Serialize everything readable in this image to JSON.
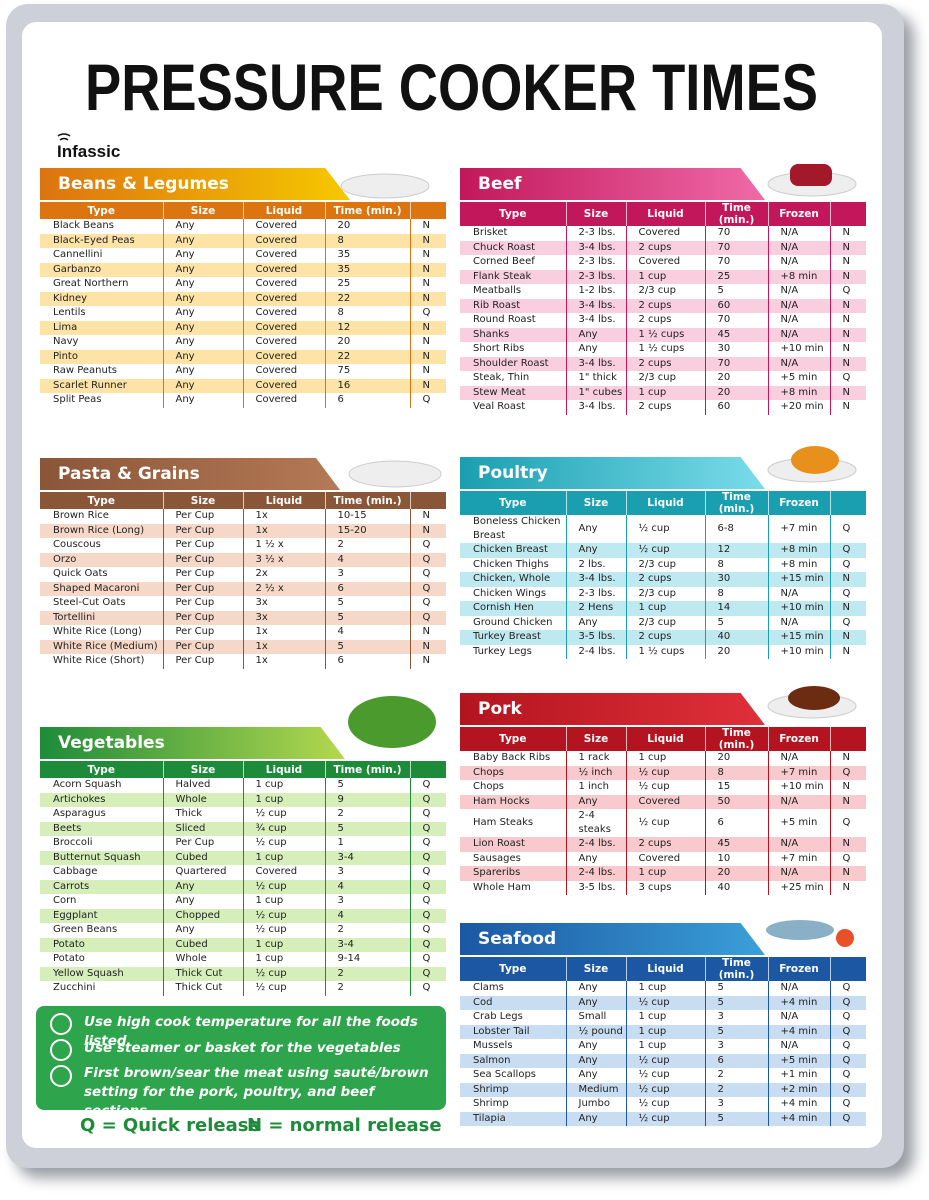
{
  "header": {
    "title": "PRESSURE COOKER TIMES",
    "brand": "Infassic"
  },
  "sections": [
    {
      "title": "Beans & Legumes",
      "columns": [
        "Type",
        "Size",
        "Liquid",
        "Time (min.)"
      ],
      "rows": [
        [
          "Black Beans",
          "Any",
          "Covered",
          "20",
          "N"
        ],
        [
          "Black-Eyed Peas",
          "Any",
          "Covered",
          "8",
          "N"
        ],
        [
          "Cannellini",
          "Any",
          "Covered",
          "35",
          "N"
        ],
        [
          "Garbanzo",
          "Any",
          "Covered",
          "35",
          "N"
        ],
        [
          "Great Northern",
          "Any",
          "Covered",
          "25",
          "N"
        ],
        [
          "Kidney",
          "Any",
          "Covered",
          "22",
          "N"
        ],
        [
          "Lentils",
          "Any",
          "Covered",
          "8",
          "Q"
        ],
        [
          "Lima",
          "Any",
          "Covered",
          "12",
          "N"
        ],
        [
          "Navy",
          "Any",
          "Covered",
          "20",
          "N"
        ],
        [
          "Pinto",
          "Any",
          "Covered",
          "22",
          "N"
        ],
        [
          "Raw Peanuts",
          "Any",
          "Covered",
          "75",
          "N"
        ],
        [
          "Scarlet Runner",
          "Any",
          "Covered",
          "16",
          "N"
        ],
        [
          "Split Peas",
          "Any",
          "Covered",
          "6",
          "Q"
        ]
      ]
    },
    {
      "title": "Beef",
      "columns": [
        "Type",
        "Size",
        "Liquid",
        "Time (min.)",
        "Frozen"
      ],
      "rows": [
        [
          "Brisket",
          "2-3 lbs.",
          "Covered",
          "70",
          "N/A",
          "N"
        ],
        [
          "Chuck Roast",
          "3-4 lbs.",
          "2 cups",
          "70",
          "N/A",
          "N"
        ],
        [
          "Corned Beef",
          "2-3 lbs.",
          "Covered",
          "70",
          "N/A",
          "N"
        ],
        [
          "Flank Steak",
          "2-3 lbs.",
          "1 cup",
          "25",
          "+8 min",
          "N"
        ],
        [
          "Meatballs",
          "1-2 lbs.",
          "2/3 cup",
          "5",
          "N/A",
          "Q"
        ],
        [
          "Rib Roast",
          "3-4 lbs.",
          "2 cups",
          "60",
          "N/A",
          "N"
        ],
        [
          "Round Roast",
          "3-4 lbs.",
          "2 cups",
          "70",
          "N/A",
          "N"
        ],
        [
          "Shanks",
          "Any",
          "1 ½ cups",
          "45",
          "N/A",
          "N"
        ],
        [
          "Short Ribs",
          "Any",
          "1 ½ cups",
          "30",
          "+10 min",
          "N"
        ],
        [
          "Shoulder Roast",
          "3-4 lbs.",
          "2 cups",
          "70",
          "N/A",
          "N"
        ],
        [
          "Steak, Thin",
          "1\" thick",
          "2/3 cup",
          "20",
          "+5 min",
          "Q"
        ],
        [
          "Stew Meat",
          "1\" cubes",
          "1 cup",
          "20",
          "+8 min",
          "N"
        ],
        [
          "Veal Roast",
          "3-4 lbs.",
          "2 cups",
          "60",
          "+20 min",
          "N"
        ]
      ]
    },
    {
      "title": "Pasta & Grains",
      "columns": [
        "Type",
        "Size",
        "Liquid",
        "Time (min.)"
      ],
      "rows": [
        [
          "Brown Rice",
          "Per Cup",
          "1x",
          "10-15",
          "N"
        ],
        [
          "Brown Rice (Long)",
          "Per Cup",
          "1x",
          "15-20",
          "N"
        ],
        [
          "Couscous",
          "Per Cup",
          "1 ½ x",
          "2",
          "Q"
        ],
        [
          "Orzo",
          "Per Cup",
          "3 ½ x",
          "4",
          "Q"
        ],
        [
          "Quick Oats",
          "Per Cup",
          "2x",
          "3",
          "Q"
        ],
        [
          "Shaped Macaroni",
          "Per Cup",
          "2 ½ x",
          "6",
          "Q"
        ],
        [
          "Steel-Cut Oats",
          "Per Cup",
          "3x",
          "5",
          "Q"
        ],
        [
          "Tortellini",
          "Per Cup",
          "3x",
          "5",
          "Q"
        ],
        [
          "White Rice (Long)",
          "Per Cup",
          "1x",
          "4",
          "N"
        ],
        [
          "White Rice (Medium)",
          "Per Cup",
          "1x",
          "5",
          "N"
        ],
        [
          "White Rice (Short)",
          "Per Cup",
          "1x",
          "6",
          "N"
        ]
      ]
    },
    {
      "title": "Poultry",
      "columns": [
        "Type",
        "Size",
        "Liquid",
        "Time (min.)",
        "Frozen"
      ],
      "rows": [
        [
          "Boneless Chicken Breast",
          "Any",
          "½ cup",
          "6-8",
          "+7 min",
          "Q"
        ],
        [
          "Chicken Breast",
          "Any",
          "½ cup",
          "12",
          "+8 min",
          "Q"
        ],
        [
          "Chicken Thighs",
          "2 lbs.",
          "2/3 cup",
          "8",
          "+8 min",
          "Q"
        ],
        [
          "Chicken, Whole",
          "3-4 lbs.",
          "2 cups",
          "30",
          "+15 min",
          "N"
        ],
        [
          "Chicken Wings",
          "2-3 lbs.",
          "2/3 cup",
          "8",
          "N/A",
          "Q"
        ],
        [
          "Cornish Hen",
          "2 Hens",
          "1 cup",
          "14",
          "+10 min",
          "N"
        ],
        [
          "Ground Chicken",
          "Any",
          "2/3 cup",
          "5",
          "N/A",
          "Q"
        ],
        [
          "Turkey Breast",
          "3-5 lbs.",
          "2 cups",
          "40",
          "+15 min",
          "N"
        ],
        [
          "Turkey Legs",
          "2-4 lbs.",
          "1 ½ cups",
          "20",
          "+10 min",
          "N"
        ]
      ]
    },
    {
      "title": "Vegetables",
      "columns": [
        "Type",
        "Size",
        "Liquid",
        "Time (min.)"
      ],
      "rows": [
        [
          "Acorn Squash",
          "Halved",
          "1 cup",
          "5",
          "Q"
        ],
        [
          "Artichokes",
          "Whole",
          "1 cup",
          "9",
          "Q"
        ],
        [
          "Asparagus",
          "Thick",
          "½ cup",
          "2",
          "Q"
        ],
        [
          "Beets",
          "Sliced",
          "¾ cup",
          "5",
          "Q"
        ],
        [
          "Broccoli",
          "Per Cup",
          "½ cup",
          "1",
          "Q"
        ],
        [
          "Butternut Squash",
          "Cubed",
          "1 cup",
          "3-4",
          "Q"
        ],
        [
          "Cabbage",
          "Quartered",
          "Covered",
          "3",
          "Q"
        ],
        [
          "Carrots",
          "Any",
          "½ cup",
          "4",
          "Q"
        ],
        [
          "Corn",
          "Any",
          "1 cup",
          "3",
          "Q"
        ],
        [
          "Eggplant",
          "Chopped",
          "½ cup",
          "4",
          "Q"
        ],
        [
          "Green Beans",
          "Any",
          "½ cup",
          "2",
          "Q"
        ],
        [
          "Potato",
          "Cubed",
          "1 cup",
          "3-4",
          "Q"
        ],
        [
          "Potato",
          "Whole",
          "1 cup",
          "9-14",
          "Q"
        ],
        [
          "Yellow Squash",
          "Thick Cut",
          "½ cup",
          "2",
          "Q"
        ],
        [
          "Zucchini",
          "Thick Cut",
          "½ cup",
          "2",
          "Q"
        ]
      ]
    },
    {
      "title": "Pork",
      "columns": [
        "Type",
        "Size",
        "Liquid",
        "Time (min.)",
        "Frozen"
      ],
      "rows": [
        [
          "Baby Back Ribs",
          "1 rack",
          "1 cup",
          "20",
          "N/A",
          "N"
        ],
        [
          "Chops",
          "½ inch",
          "½ cup",
          "8",
          "+7 min",
          "Q"
        ],
        [
          "Chops",
          "1 inch",
          "½ cup",
          "15",
          "+10 min",
          "N"
        ],
        [
          "Ham Hocks",
          "Any",
          "Covered",
          "50",
          "N/A",
          "N"
        ],
        [
          "Ham Steaks",
          "2-4 steaks",
          "½ cup",
          "6",
          "+5 min",
          "Q"
        ],
        [
          "Lion Roast",
          "2-4 lbs.",
          "2 cups",
          "45",
          "N/A",
          "N"
        ],
        [
          "Sausages",
          "Any",
          "Covered",
          "10",
          "+7 min",
          "Q"
        ],
        [
          "Spareribs",
          "2-4 lbs.",
          "1 cup",
          "20",
          "N/A",
          "N"
        ],
        [
          "Whole Ham",
          "3-5 lbs.",
          "3 cups",
          "40",
          "+25 min",
          "N"
        ]
      ]
    },
    {
      "title": "Seafood",
      "columns": [
        "Type",
        "Size",
        "Liquid",
        "Time (min.)",
        "Frozen"
      ],
      "rows": [
        [
          "Clams",
          "Any",
          "1 cup",
          "5",
          "N/A",
          "Q"
        ],
        [
          "Cod",
          "Any",
          "½ cup",
          "5",
          "+4 min",
          "Q"
        ],
        [
          "Crab Legs",
          "Small",
          "1 cup",
          "3",
          "N/A",
          "Q"
        ],
        [
          "Lobster Tail",
          "½ pound",
          "1 cup",
          "5",
          "+4 min",
          "Q"
        ],
        [
          "Mussels",
          "Any",
          "1 cup",
          "3",
          "N/A",
          "Q"
        ],
        [
          "Salmon",
          "Any",
          "½ cup",
          "6",
          "+5 min",
          "Q"
        ],
        [
          "Sea Scallops",
          "Any",
          "½ cup",
          "2",
          "+1 min",
          "Q"
        ],
        [
          "Shrimp",
          "Medium",
          "½ cup",
          "2",
          "+2 min",
          "Q"
        ],
        [
          "Shrimp",
          "Jumbo",
          "½ cup",
          "3",
          "+4 min",
          "Q"
        ],
        [
          "Tilapia",
          "Any",
          "½ cup",
          "5",
          "+4 min",
          "Q"
        ]
      ]
    }
  ],
  "notes": [
    "Use high cook temperature for all the foods listed",
    "Use steamer or basket for the vegetables",
    "First brown/sear the meat using sauté/brown setting for the pork, poultry, and beef sections"
  ],
  "legend": [
    "Q = Quick release",
    "N = normal release"
  ]
}
